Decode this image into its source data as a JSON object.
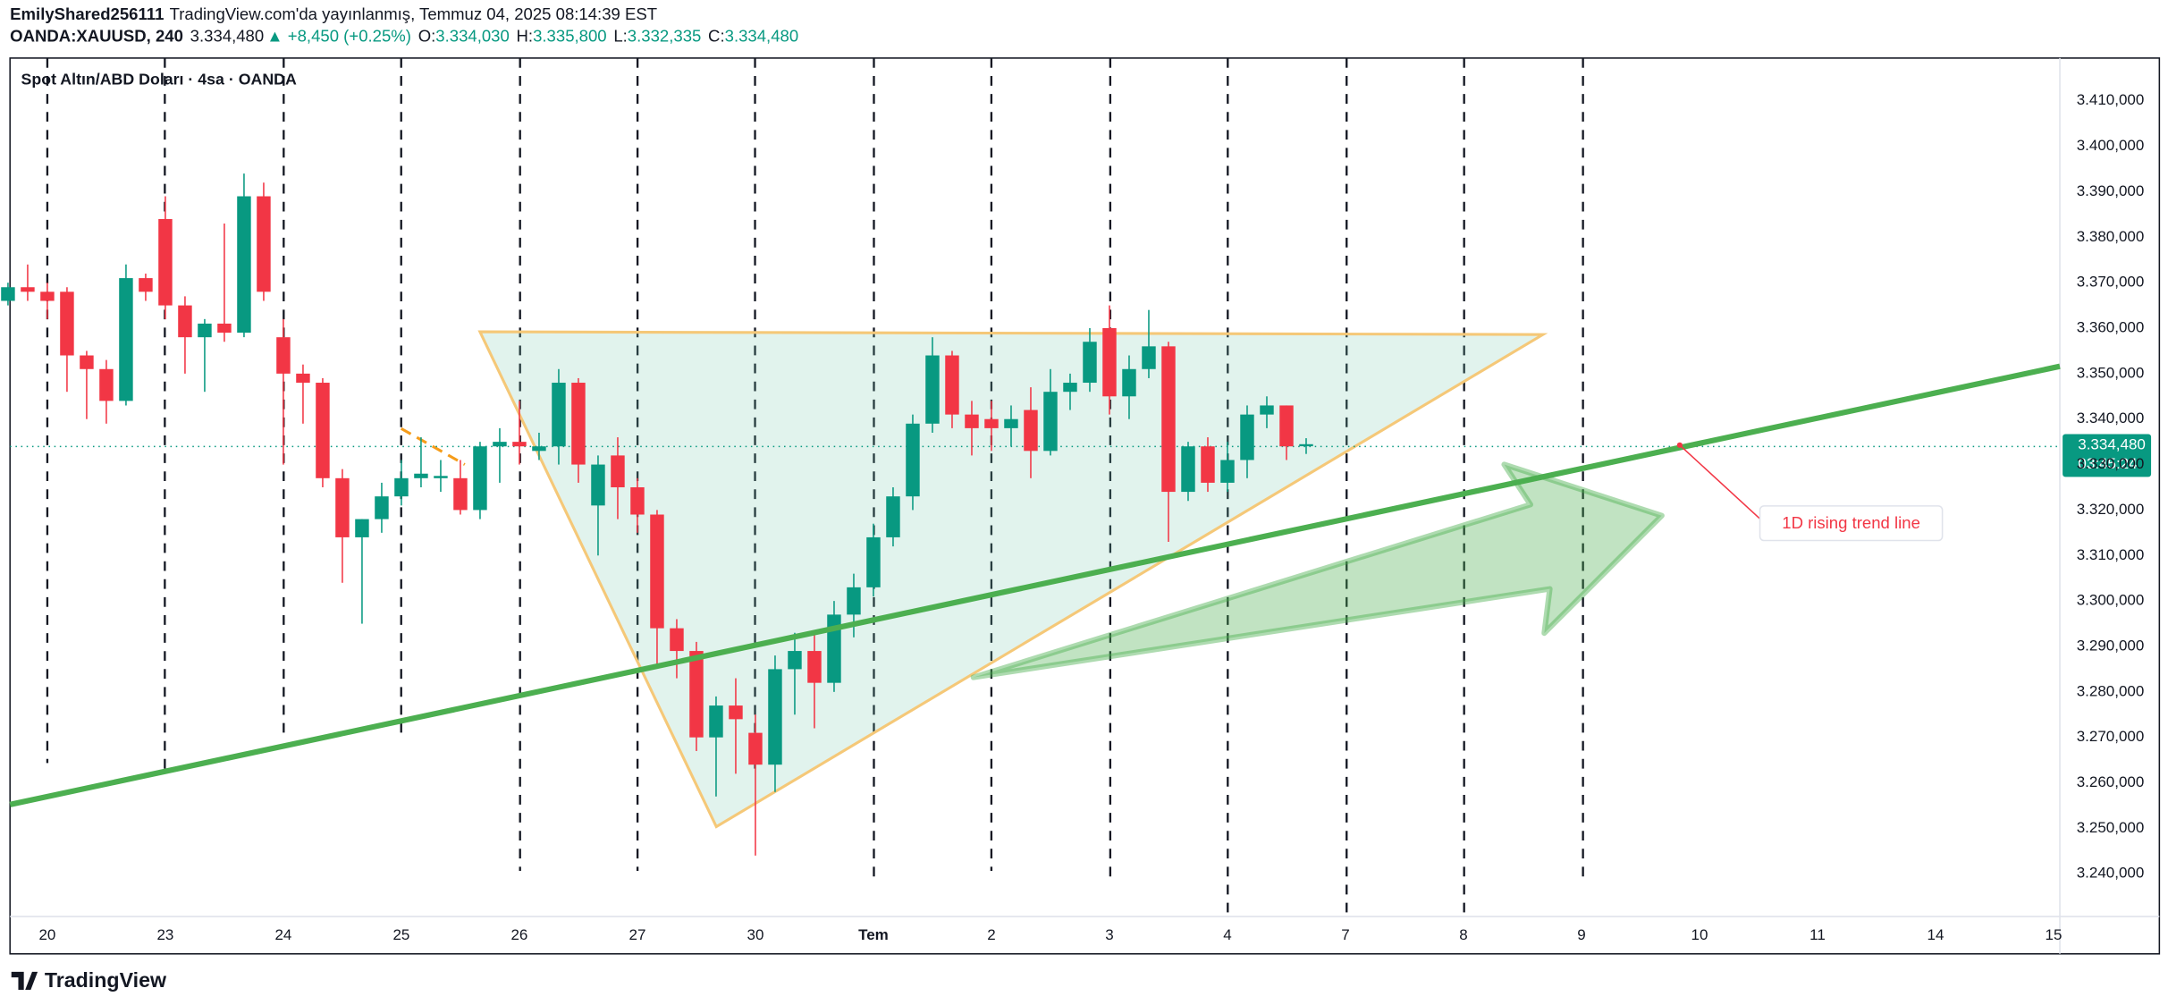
{
  "header": {
    "user": "EmilyShared256111",
    "published": "TradingView.com'da yayınlanmış, Temmuz 04, 2025 08:14:39 EST",
    "symbol": "OANDA:XAUUSD, 240",
    "last": "3.334,480",
    "change": "▲ +8,450 (+0.25%)",
    "ohlc": [
      {
        "label": "O:",
        "value": "3.334,030"
      },
      {
        "label": "H:",
        "value": "3.335,800"
      },
      {
        "label": "L:",
        "value": "3.332,335"
      },
      {
        "label": "C:",
        "value": "3.334,480"
      }
    ]
  },
  "chart_data": {
    "type": "candlestick",
    "title": "Spot Altın/ABD Doları · 4sa · OANDA",
    "categories": [
      null,
      null,
      "20",
      null,
      null,
      null,
      null,
      null,
      "23",
      null,
      null,
      null,
      null,
      null,
      "24",
      null,
      null,
      null,
      null,
      null,
      "25",
      null,
      null,
      null,
      null,
      null,
      "26",
      null,
      null,
      null,
      null,
      null,
      "27",
      null,
      null,
      null,
      null,
      null,
      "30",
      null,
      null,
      null,
      null,
      null,
      "Tem",
      null,
      null,
      null,
      null,
      null,
      "2",
      null,
      null,
      null,
      null,
      null,
      "3",
      null,
      null,
      null,
      null,
      null,
      "4",
      null,
      null,
      null,
      null,
      null,
      "7",
      null,
      null,
      null,
      null,
      null,
      "8",
      null,
      null,
      null,
      null,
      null,
      "9",
      null,
      null,
      null,
      null,
      null,
      "10",
      null,
      null,
      null,
      null,
      null,
      "11",
      null,
      null,
      null,
      null,
      null,
      "14",
      null,
      null,
      null,
      null,
      null,
      "15"
    ],
    "open": [
      3366,
      3369,
      3368,
      3368,
      3354,
      3351,
      3344,
      3371,
      3384,
      3365,
      3358,
      3361,
      3359,
      3389,
      3358,
      3350,
      3348,
      3327,
      3314,
      3318,
      3323,
      3327,
      3327,
      3327,
      3320,
      3334,
      3335,
      3333,
      3334,
      3348,
      3321,
      3332,
      3325,
      3319,
      3294,
      3289,
      3270,
      3277,
      3271,
      3264,
      3285,
      3289,
      3282,
      3297,
      3303,
      3314,
      3323,
      3339,
      3354,
      3341,
      3340,
      3338,
      3342,
      3333,
      3346,
      3348,
      3360,
      3345,
      3351,
      3356,
      3324,
      3334,
      3326,
      3331,
      3341,
      3343,
      3334.03,
      null,
      null,
      null,
      null,
      null,
      null,
      null,
      null,
      null,
      null,
      null,
      null,
      null,
      null,
      null,
      null,
      null,
      null,
      null,
      null,
      null,
      null,
      null,
      null,
      null,
      null,
      null,
      null,
      null,
      null,
      null,
      null,
      null,
      null,
      null,
      null,
      null,
      null
    ],
    "high": [
      3370,
      3374,
      3370,
      3369,
      3355,
      3353,
      3374,
      3372,
      3389,
      3367,
      3362,
      3383,
      3394,
      3392,
      3362,
      3352,
      3349,
      3329,
      3318,
      3326,
      3331,
      3336,
      3331,
      3331,
      3335,
      3338,
      3344,
      3337,
      3351,
      3349,
      3332,
      3336,
      3327,
      3320,
      3296,
      3291,
      3279,
      3283,
      3275,
      3288,
      3293,
      3293,
      3300,
      3306,
      3317,
      3325,
      3341,
      3358,
      3355,
      3344,
      3344,
      3343,
      3347,
      3351,
      3350,
      3360,
      3365,
      3354,
      3364,
      3357,
      3335,
      3336,
      3335,
      3343,
      3345,
      3343,
      3335.8,
      null,
      null,
      null,
      null,
      null,
      null,
      null,
      null,
      null,
      null,
      null,
      null,
      null,
      null,
      null,
      null,
      null,
      null,
      null,
      null,
      null,
      null,
      null,
      null,
      null,
      null,
      null,
      null,
      null,
      null,
      null,
      null,
      null,
      null,
      null,
      null,
      null,
      null
    ],
    "low": [
      3365,
      3366,
      3362,
      3346,
      3340,
      3339,
      3343,
      3366,
      3362,
      3350,
      3346,
      3357,
      3358,
      3366,
      3330,
      3339,
      3325,
      3304,
      3295,
      3315,
      3321,
      3325,
      3324,
      3319,
      3318,
      3326,
      3330,
      3331,
      3330,
      3326,
      3310,
      3318,
      3315,
      3286,
      3283,
      3267,
      3257,
      3262,
      3244,
      3258,
      3275,
      3272,
      3280,
      3292,
      3301,
      3312,
      3320,
      3337,
      3338,
      3332,
      3333,
      3334,
      3327,
      3332,
      3342,
      3346,
      3341,
      3340,
      3349,
      3313,
      3322,
      3324,
      3324,
      3327,
      3338,
      3331,
      3332.335,
      null,
      null,
      null,
      null,
      null,
      null,
      null,
      null,
      null,
      null,
      null,
      null,
      null,
      null,
      null,
      null,
      null,
      null,
      null,
      null,
      null,
      null,
      null,
      null,
      null,
      null,
      null,
      null,
      null,
      null,
      null,
      null,
      null,
      null,
      null,
      null,
      null,
      null
    ],
    "close": [
      3369,
      3368,
      3366,
      3354,
      3351,
      3344,
      3371,
      3368,
      3365,
      3358,
      3361,
      3359,
      3389,
      3368,
      3350,
      3348,
      3327,
      3314,
      3318,
      3323,
      3327,
      3328,
      3327.5,
      3320,
      3334,
      3335,
      3334,
      3334,
      3348,
      3330,
      3330,
      3325,
      3319,
      3294,
      3289,
      3270,
      3277,
      3274,
      3264,
      3285,
      3289,
      3282,
      3297,
      3303,
      3314,
      3323,
      3339,
      3354,
      3341,
      3338,
      3338,
      3340,
      3333,
      3346,
      3348,
      3357,
      3345,
      3351,
      3356,
      3324,
      3334,
      3326,
      3331,
      3341,
      3343,
      3334,
      3334.48,
      null,
      null,
      null,
      null,
      null,
      null,
      null,
      null,
      null,
      null,
      null,
      null,
      null,
      null,
      null,
      null,
      null,
      null,
      null,
      null,
      null,
      null,
      null,
      null,
      null,
      null,
      null,
      null,
      null,
      null,
      null,
      null,
      null,
      null,
      null,
      null,
      null,
      null
    ],
    "up_color": "#089981",
    "down_color": "#f23645",
    "ylim": [
      3230.6,
      3419.4
    ],
    "yticks": [
      {
        "value": 3240,
        "label": "3.240,000"
      },
      {
        "value": 3250,
        "label": "3.250,000"
      },
      {
        "value": 3260,
        "label": "3.260,000"
      },
      {
        "value": 3270,
        "label": "3.270,000"
      },
      {
        "value": 3280,
        "label": "3.280,000"
      },
      {
        "value": 3290,
        "label": "3.290,000"
      },
      {
        "value": 3300,
        "label": "3.300,000"
      },
      {
        "value": 3310,
        "label": "3.310,000"
      },
      {
        "value": 3320,
        "label": "3.320,000"
      },
      {
        "value": 3330,
        "label": "3.330,000"
      },
      {
        "value": 3340,
        "label": "3.340,000"
      },
      {
        "value": 3350,
        "label": "3.350,000"
      },
      {
        "value": 3360,
        "label": "3.360,000"
      },
      {
        "value": 3370,
        "label": "3.370,000"
      },
      {
        "value": 3380,
        "label": "3.380,000"
      },
      {
        "value": 3390,
        "label": "3.390,000"
      },
      {
        "value": 3400,
        "label": "3.400,000"
      },
      {
        "value": 3410,
        "label": "3.410,000"
      }
    ],
    "grid": false,
    "price_tag": {
      "price": "3.334,480",
      "countdown": "03:45:24"
    },
    "annotation": "1D rising trend line"
  },
  "footer": {
    "logo": "TradingView"
  }
}
